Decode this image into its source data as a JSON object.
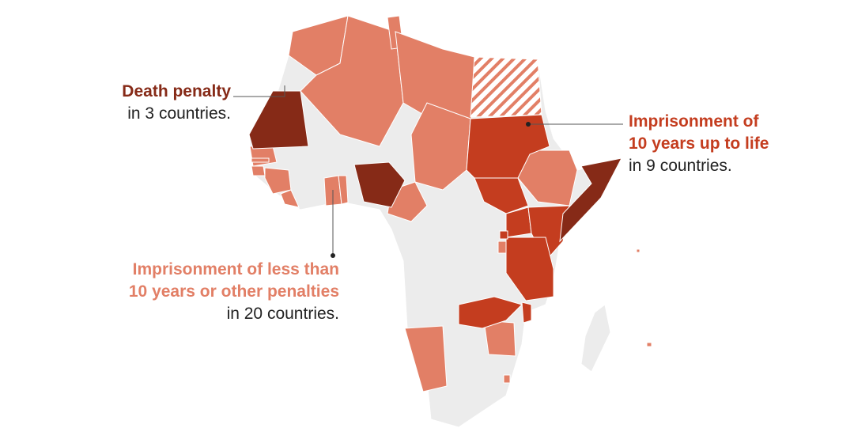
{
  "colors": {
    "death": "#862a17",
    "life": "#c43d1f",
    "less": "#e27f66",
    "none": "#ececec",
    "border": "#ffffff",
    "leader": "#555555",
    "hatch": "#e27f66"
  },
  "legend": {
    "death": {
      "title": "Death penalty",
      "count": "in 3 countries."
    },
    "life": {
      "title_line1": "Imprisonment of",
      "title_line2": "10 years up to life",
      "count": "in 9 countries."
    },
    "less": {
      "title_line1": "Imprisonment of less than",
      "title_line2": "10 years or other penalties",
      "count": "in 20 countries."
    }
  }
}
